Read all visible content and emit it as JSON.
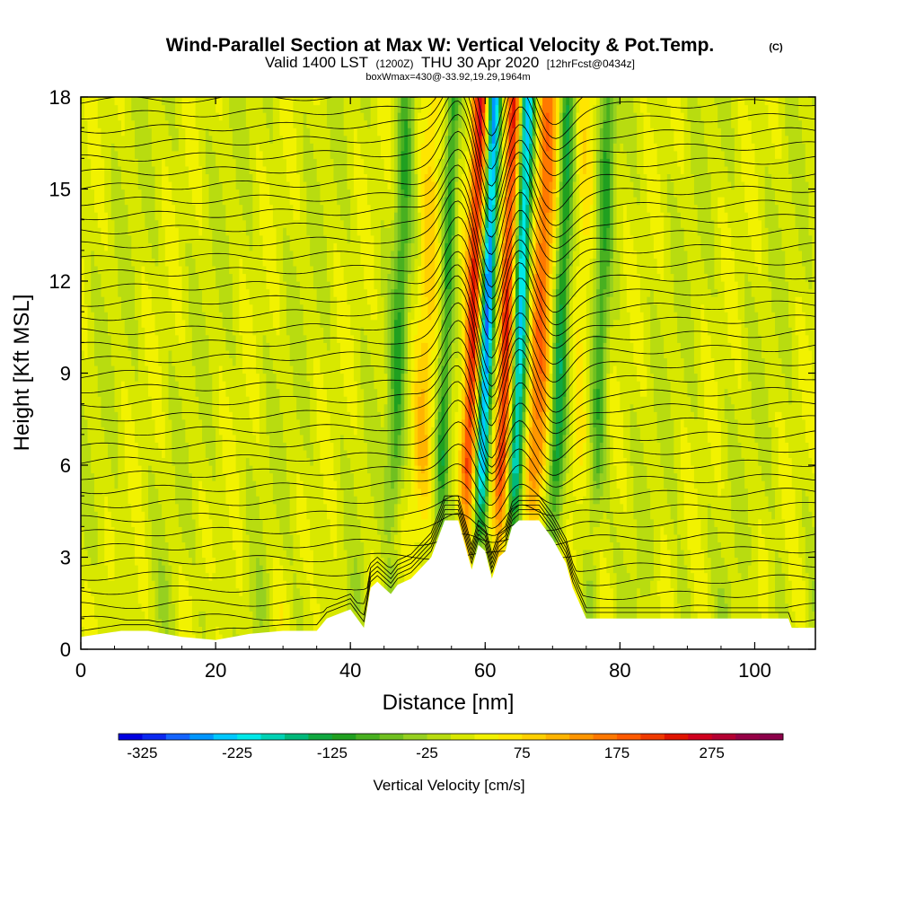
{
  "chart_data": {
    "type": "heatmap",
    "title": "Wind-Parallel Section at Max W: Vertical Velocity & Pot.Temp.",
    "title_suffix": "(C)",
    "subtitle": {
      "valid": "Valid 1400 LST",
      "utc": "(1200Z)",
      "date": "THU 30 Apr 2020",
      "forecast": "[12hrFcst@0434z]"
    },
    "box_info": "boxWmax=430@-33.92,19.29,1964m",
    "xlabel": "Distance [nm]",
    "ylabel": "Height [Kft MSL]",
    "xlim": [
      0,
      109
    ],
    "ylim": [
      0,
      18
    ],
    "x_ticks": [
      0,
      20,
      40,
      60,
      80,
      100
    ],
    "y_ticks": [
      0,
      3,
      6,
      9,
      12,
      15,
      18
    ],
    "colorbar": {
      "label": "Vertical Velocity [cm/s]",
      "min": -350,
      "max": 350,
      "step": 25,
      "tick_labels": [
        "-325",
        "-225",
        "-125",
        "-25",
        "75",
        "175",
        "275"
      ],
      "colors": [
        "#0000e0",
        "#0a28f0",
        "#1464ff",
        "#0096ff",
        "#00c8ff",
        "#00e8e8",
        "#00d2b4",
        "#00b87a",
        "#10a840",
        "#20a020",
        "#48b020",
        "#70c020",
        "#96d020",
        "#b8dc10",
        "#d8e800",
        "#f2f200",
        "#ffe600",
        "#ffd000",
        "#ffb400",
        "#ff9600",
        "#ff7800",
        "#ff5a00",
        "#f03a00",
        "#e01400",
        "#d0001e",
        "#b40032",
        "#960046",
        "#8c004a"
      ]
    },
    "terrain": [
      [
        0,
        0.4
      ],
      [
        6,
        0.6
      ],
      [
        10,
        0.6
      ],
      [
        15,
        0.4
      ],
      [
        20,
        0.3
      ],
      [
        25,
        0.5
      ],
      [
        30,
        0.6
      ],
      [
        35,
        0.6
      ],
      [
        36.5,
        1.0
      ],
      [
        40,
        1.3
      ],
      [
        41,
        1.0
      ],
      [
        42,
        0.7
      ],
      [
        43,
        2.0
      ],
      [
        44,
        2.2
      ],
      [
        45,
        2.0
      ],
      [
        46,
        1.8
      ],
      [
        47,
        2.1
      ],
      [
        49,
        2.3
      ],
      [
        52,
        3.0
      ],
      [
        53,
        3.6
      ],
      [
        54,
        4.2
      ],
      [
        56,
        4.2
      ],
      [
        57,
        3.4
      ],
      [
        58,
        2.6
      ],
      [
        59,
        3.4
      ],
      [
        60,
        3.2
      ],
      [
        61,
        2.3
      ],
      [
        62,
        3.0
      ],
      [
        63,
        3.2
      ],
      [
        64,
        4.0
      ],
      [
        65,
        4.2
      ],
      [
        68,
        4.2
      ],
      [
        70,
        3.6
      ],
      [
        72,
        2.8
      ],
      [
        73,
        2.0
      ],
      [
        74,
        1.5
      ],
      [
        75,
        1.0
      ],
      [
        77,
        1.0
      ],
      [
        95,
        1.0
      ],
      [
        105,
        1.0
      ],
      [
        105.5,
        0.7
      ],
      [
        109,
        0.7
      ]
    ],
    "theta_contours": {
      "levels_C": [
        15,
        16,
        17,
        18,
        19,
        20,
        21,
        22,
        23,
        24,
        25,
        26,
        27,
        28,
        29,
        30,
        31,
        32,
        33,
        34,
        35,
        36,
        37,
        38,
        39,
        40,
        41,
        42,
        43,
        44,
        45,
        46,
        47,
        48,
        49,
        50,
        51,
        52
      ],
      "wave_regions": [
        {
          "x": 56,
          "amplitude_kft": 1.6,
          "width_nm": 3.0
        },
        {
          "x": 61,
          "amplitude_kft": -1.8,
          "width_nm": 2.5
        },
        {
          "x": 65,
          "amplitude_kft": 1.2,
          "width_nm": 3.0
        },
        {
          "x": 70,
          "amplitude_kft": -1.0,
          "width_nm": 3.5
        }
      ]
    },
    "velocity_bands": [
      {
        "x": 47,
        "w_cms": -100,
        "width_nm": 1.2
      },
      {
        "x": 51,
        "w_cms": 75,
        "width_nm": 1.6
      },
      {
        "x": 54,
        "w_cms": -125,
        "width_nm": 1.0
      },
      {
        "x": 58,
        "w_cms": 225,
        "width_nm": 1.2
      },
      {
        "x": 60,
        "w_cms": -275,
        "width_nm": 1.0
      },
      {
        "x": 63,
        "w_cms": 225,
        "width_nm": 1.2
      },
      {
        "x": 65,
        "w_cms": -250,
        "width_nm": 1.2
      },
      {
        "x": 68,
        "w_cms": 150,
        "width_nm": 1.8
      },
      {
        "x": 71,
        "w_cms": -150,
        "width_nm": 1.2
      },
      {
        "x": 74,
        "w_cms": 50,
        "width_nm": 1.6
      },
      {
        "x": 77,
        "w_cms": -100,
        "width_nm": 1.2
      }
    ]
  }
}
